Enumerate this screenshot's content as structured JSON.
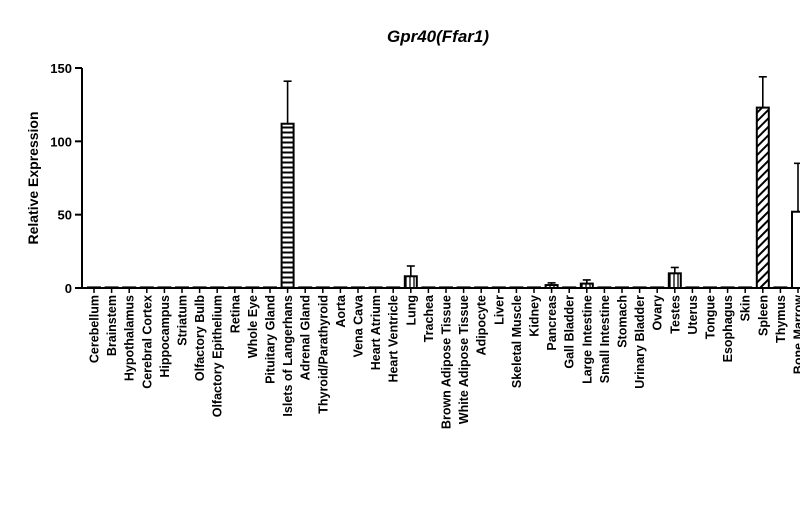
{
  "chart_data": {
    "type": "bar",
    "title": "Gpr40(Ffar1)",
    "xlabel": "",
    "ylabel": "Relative Expression",
    "ylim": [
      0,
      150
    ],
    "yticks": [
      0,
      50,
      100,
      150
    ],
    "grid": false,
    "categories": [
      "Cerebellum",
      "Brainstem",
      "Hypothalamus",
      "Cerebral Cortex",
      "Hippocampus",
      "Striatum",
      "Olfactory Bulb",
      "Olfactory Epithelium",
      "Retina",
      "Whole Eye",
      "Pituitary Gland",
      "Islets of Langerhans",
      "Adrenal Gland",
      "Thyroid/Parathyroid",
      "Aorta",
      "Vena Cava",
      "Heart Atrium",
      "Heart Ventricle",
      "Lung",
      "Trachea",
      "Brown Adipose Tissue",
      "White Adipose Tissue",
      "Adipocyte",
      "Liver",
      "Skeletal Muscle",
      "Kidney",
      "Pancreas",
      "Gall Bladder",
      "Large Intestine",
      "Small Intestine",
      "Stomach",
      "Urinary Bladder",
      "Ovary",
      "Testes",
      "Uterus",
      "Tongue",
      "Esophagus",
      "Skin",
      "Spleen",
      "Thymus",
      "Bone Marrow"
    ],
    "values": [
      0.2,
      0.2,
      0.2,
      0.2,
      0.2,
      0.2,
      0.2,
      0.2,
      0.2,
      0.2,
      0.2,
      112,
      0.2,
      0.2,
      0.2,
      0.2,
      0.2,
      0.2,
      8,
      0.2,
      0.2,
      0.2,
      0.2,
      0.2,
      0.2,
      0.2,
      2,
      0.2,
      3,
      0.2,
      0.2,
      0.2,
      0.2,
      10,
      0.2,
      0.2,
      0.2,
      0.2,
      123,
      0.2,
      52
    ],
    "errors": [
      0,
      0,
      0,
      0,
      0,
      0,
      0,
      0,
      0,
      0,
      0,
      29,
      0,
      0,
      0,
      0,
      0,
      0,
      7,
      0,
      0,
      0,
      0,
      0,
      0,
      0,
      1.5,
      0,
      2.5,
      0,
      0,
      0,
      0,
      4,
      0,
      0,
      0,
      0,
      21,
      0,
      33
    ],
    "patterns": [
      "none",
      "none",
      "none",
      "none",
      "none",
      "none",
      "none",
      "none",
      "none",
      "none",
      "none",
      "horizontal",
      "none",
      "none",
      "none",
      "none",
      "none",
      "none",
      "vertical",
      "none",
      "none",
      "none",
      "none",
      "none",
      "none",
      "none",
      "vertical",
      "none",
      "vertical",
      "none",
      "none",
      "none",
      "none",
      "vertical",
      "none",
      "none",
      "none",
      "none",
      "diagonal",
      "none",
      "none"
    ],
    "colors": {
      "bar_fill": "#ffffff",
      "stroke": "#000000"
    }
  }
}
